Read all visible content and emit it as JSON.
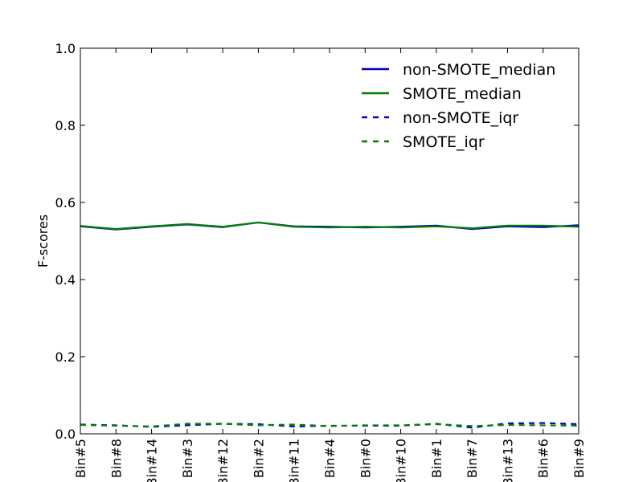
{
  "chart_data": {
    "type": "line",
    "title": "",
    "xlabel": "",
    "ylabel": "F-scores",
    "ylim": [
      0.0,
      1.0
    ],
    "yticks": [
      "0.0",
      "0.2",
      "0.4",
      "0.6",
      "0.8",
      "1.0"
    ],
    "categories": [
      "Bin#5",
      "Bin#8",
      "Bin#14",
      "Bin#3",
      "Bin#12",
      "Bin#2",
      "Bin#11",
      "Bin#4",
      "Bin#0",
      "Bin#10",
      "Bin#1",
      "Bin#7",
      "Bin#13",
      "Bin#6",
      "Bin#9"
    ],
    "grid": false,
    "legend_position": "top-right",
    "series": [
      {
        "name": "non-SMOTE_median",
        "color": "#0000cc",
        "dash": "solid",
        "values": [
          0.538,
          0.53,
          0.537,
          0.543,
          0.536,
          0.548,
          0.538,
          0.537,
          0.535,
          0.537,
          0.54,
          0.531,
          0.538,
          0.536,
          0.541
        ]
      },
      {
        "name": "SMOTE_median",
        "color": "#008000",
        "dash": "solid",
        "values": [
          0.539,
          0.531,
          0.538,
          0.544,
          0.537,
          0.548,
          0.537,
          0.535,
          0.537,
          0.535,
          0.538,
          0.533,
          0.54,
          0.54,
          0.537
        ]
      },
      {
        "name": "non-SMOTE_iqr",
        "color": "#0000cc",
        "dash": "dashed",
        "values": [
          0.024,
          0.022,
          0.018,
          0.022,
          0.026,
          0.025,
          0.019,
          0.021,
          0.021,
          0.021,
          0.026,
          0.016,
          0.027,
          0.028,
          0.025
        ]
      },
      {
        "name": "SMOTE_iqr",
        "color": "#008000",
        "dash": "dashed",
        "values": [
          0.023,
          0.021,
          0.019,
          0.026,
          0.026,
          0.022,
          0.024,
          0.02,
          0.022,
          0.022,
          0.025,
          0.02,
          0.023,
          0.022,
          0.021
        ]
      }
    ]
  }
}
